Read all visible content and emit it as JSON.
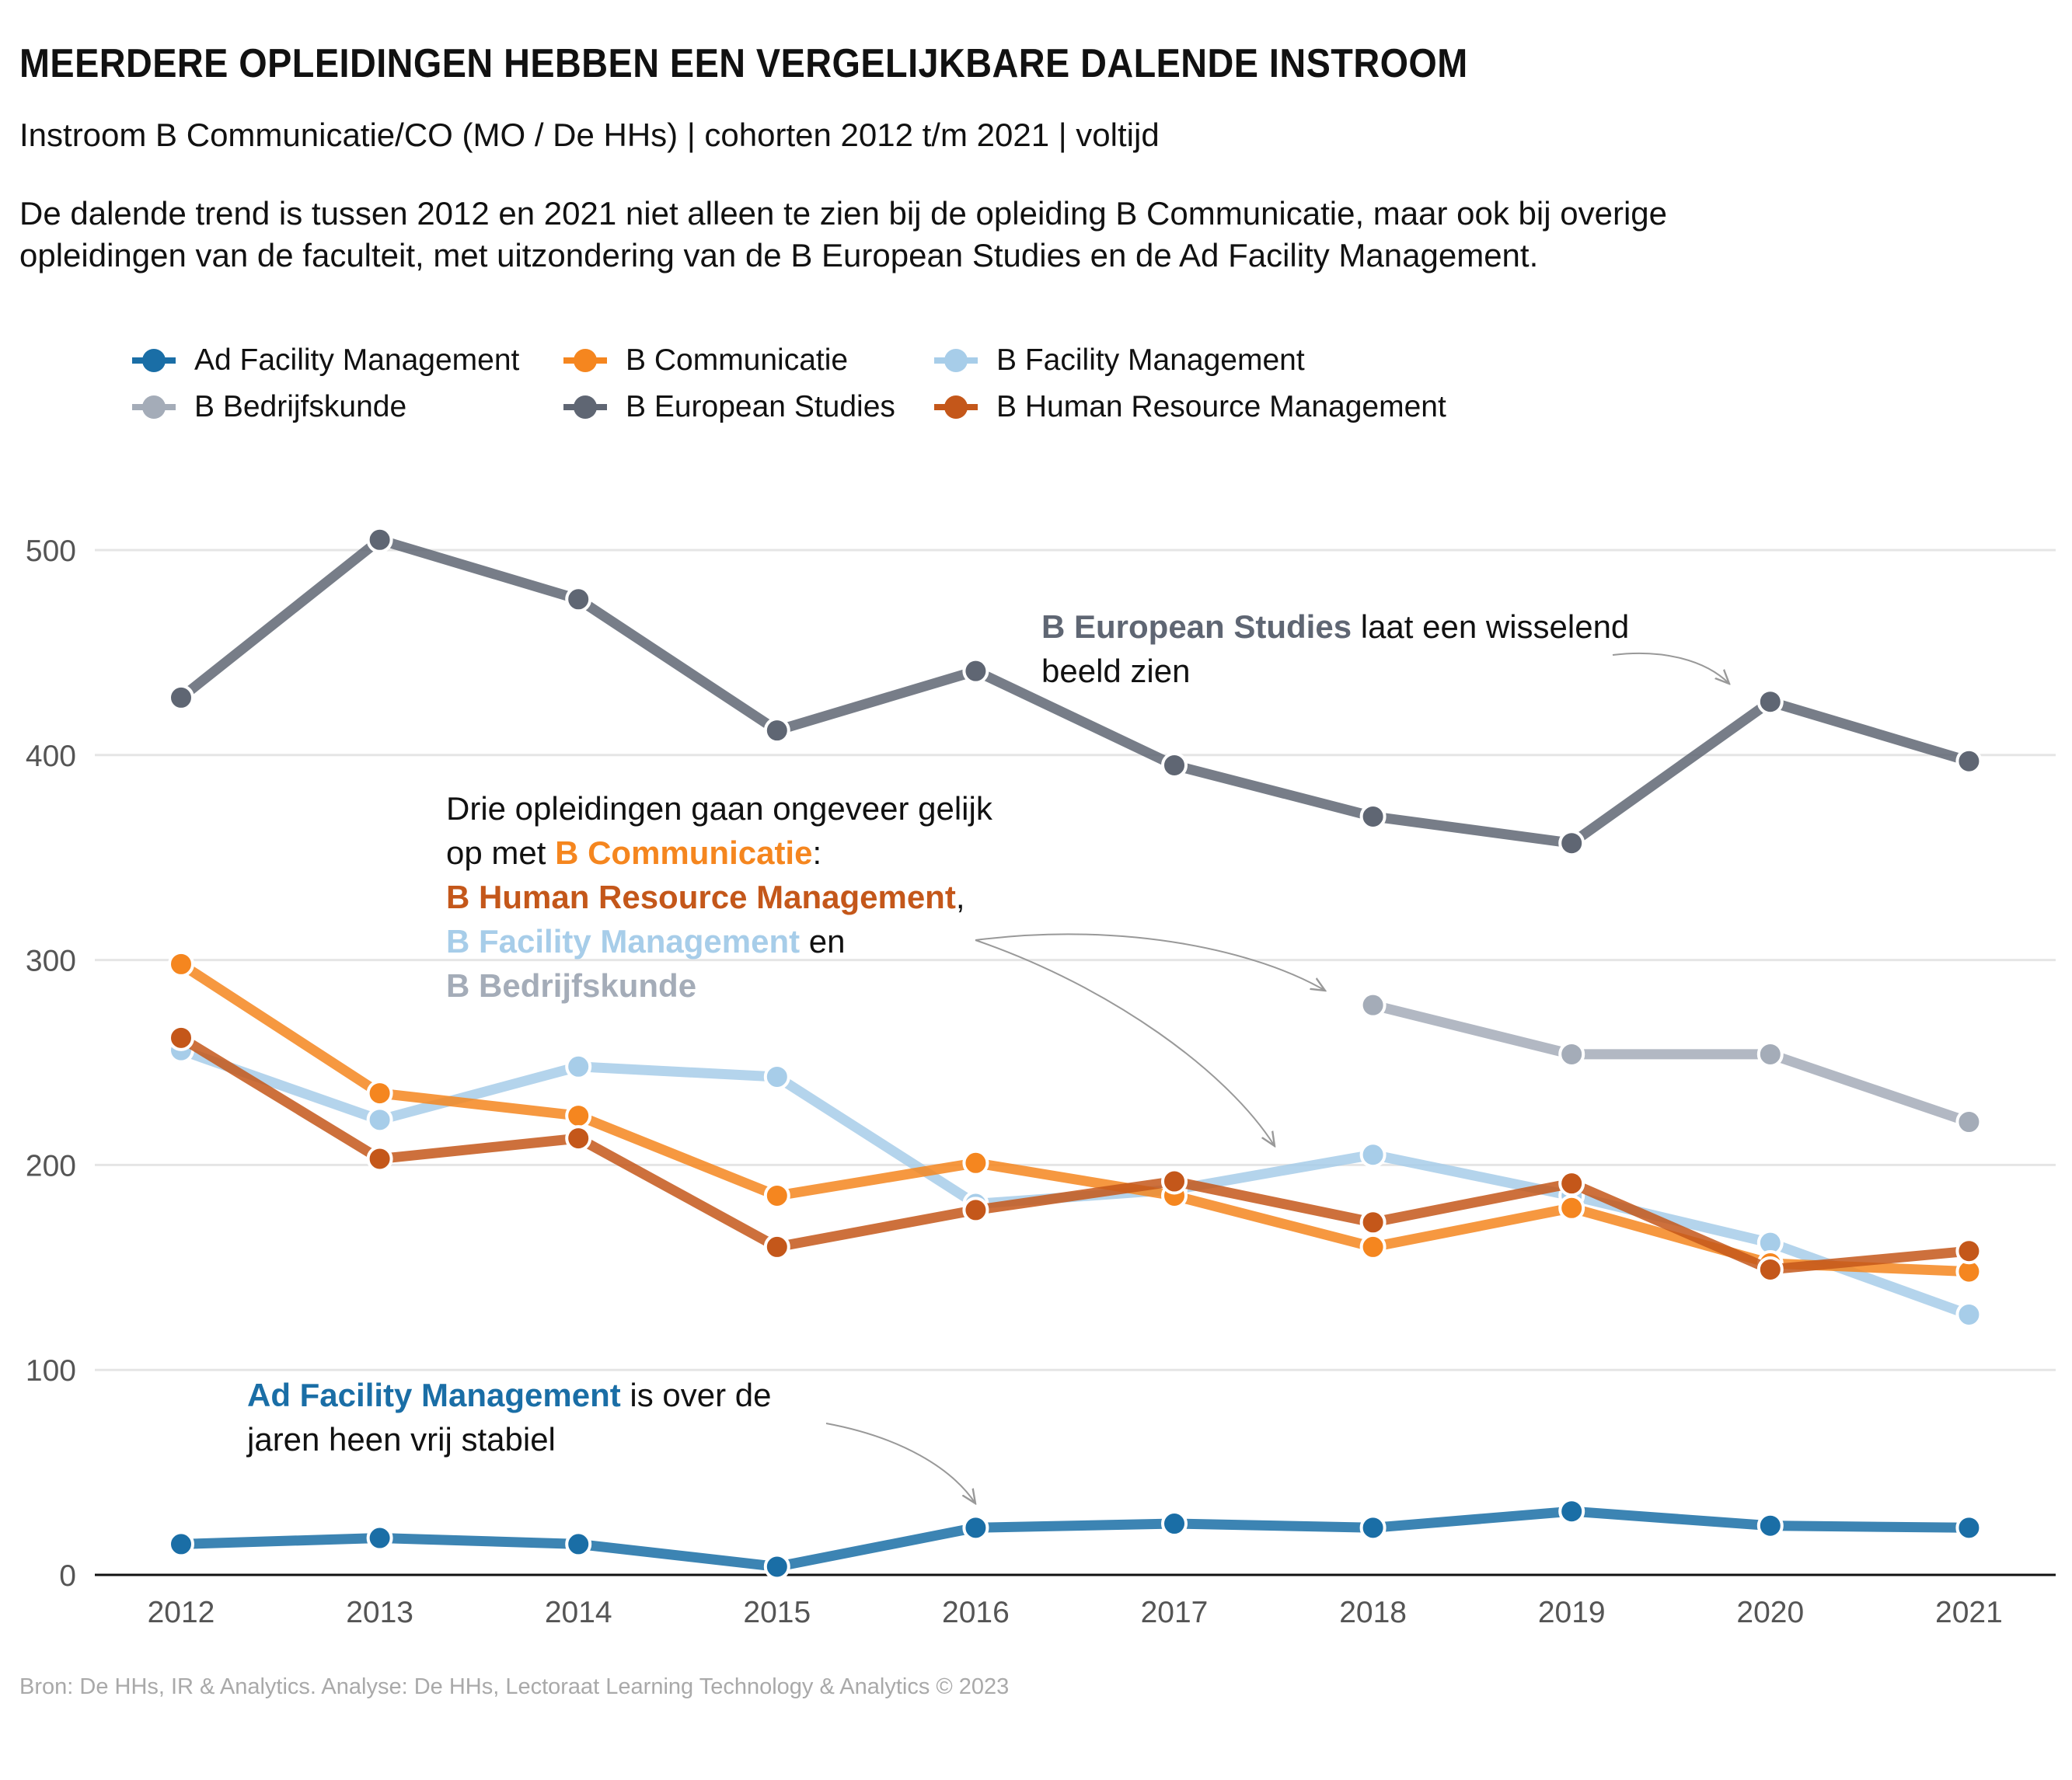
{
  "title": "MEERDERE OPLEIDINGEN HEBBEN EEN VERGELIJKBARE DALENDE INSTROOM",
  "subtitle": "Instroom B Communicatie/CO (MO / De HHs) | cohorten 2012 t/m 2021 | voltijd",
  "description_line1": "De dalende trend is tussen 2012 en 2021 niet alleen te zien bij de opleiding B Communicatie, maar ook bij overige",
  "description_line2": "opleidingen van de faculteit, met uitzondering van de B European Studies en de Ad Facility Management.",
  "source": "Bron: De HHs, IR & Analytics. Analyse: De HHs, Lectoraat Learning Technology & Analytics © 2023",
  "annotations": {
    "european": {
      "bold": "B European Studies",
      "rest": " laat een wisselend",
      "line2": "beeld zien"
    },
    "drie": {
      "line1": "Drie opleidingen gaan ongeveer gelijk",
      "line2_pre": "op met ",
      "line2_bold": "B Communicatie",
      "line2_post": ":",
      "line3_bold": "B Human Resource Management",
      "line3_post": ",",
      "line4_bold": "B Facility Management",
      "line4_post": " en",
      "line5_bold": "B Bedrijfskunde"
    },
    "ad": {
      "bold": "Ad Facility Management",
      "rest": " is over de",
      "line2": "jaren heen vrij stabiel"
    }
  },
  "colors": {
    "ad_fm": "#1a6ea6",
    "b_comm": "#f5861f",
    "b_fm": "#a7cde9",
    "b_bedr": "#a4acb8",
    "b_es": "#5f6673",
    "b_hrm": "#c4571a",
    "grid": "#e5e5e5",
    "axis": "#111111",
    "tick": "#555555",
    "arrow": "#999999"
  },
  "chart_data": {
    "type": "line",
    "x": [
      2012,
      2013,
      2014,
      2015,
      2016,
      2017,
      2018,
      2019,
      2020,
      2021
    ],
    "ylim": [
      0,
      520
    ],
    "yticks": [
      0,
      100,
      200,
      300,
      400,
      500
    ],
    "xlabel": "",
    "ylabel": "",
    "grid": true,
    "legend_position": "top-left",
    "series": [
      {
        "name": "Ad Facility Management",
        "color": "#1a6ea6",
        "values": [
          15,
          18,
          15,
          4,
          23,
          25,
          23,
          31,
          24,
          23
        ]
      },
      {
        "name": "B Communicatie",
        "color": "#f5861f",
        "values": [
          298,
          235,
          224,
          185,
          201,
          185,
          160,
          179,
          152,
          148
        ]
      },
      {
        "name": "B Facility Management",
        "color": "#a7cde9",
        "values": [
          256,
          222,
          248,
          243,
          181,
          188,
          205,
          185,
          162,
          127
        ]
      },
      {
        "name": "B Bedrijfskunde",
        "color": "#a4acb8",
        "values": [
          null,
          null,
          null,
          null,
          null,
          null,
          278,
          254,
          254,
          221
        ]
      },
      {
        "name": "B European Studies",
        "color": "#5f6673",
        "values": [
          428,
          505,
          476,
          412,
          441,
          395,
          370,
          357,
          426,
          397
        ]
      },
      {
        "name": "B Human Resource Management",
        "color": "#c4571a",
        "values": [
          262,
          203,
          213,
          160,
          178,
          192,
          172,
          191,
          149,
          158
        ]
      }
    ]
  }
}
